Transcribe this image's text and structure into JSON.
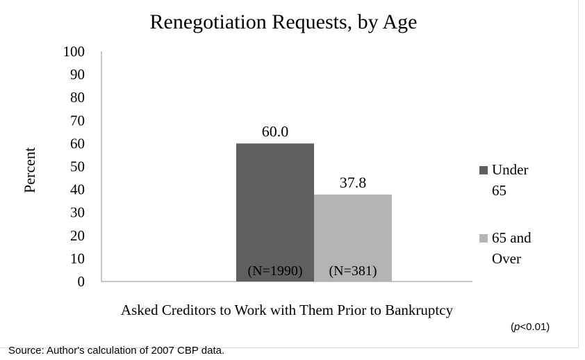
{
  "chart_data": {
    "type": "bar",
    "title": "Renegotiation Requests, by Age",
    "ylabel": "Percent",
    "xlabel": "Asked Creditors to Work with Them Prior to Bankruptcy",
    "ylim": [
      0,
      100
    ],
    "yticks": [
      "0",
      "10",
      "20",
      "30",
      "40",
      "50",
      "60",
      "70",
      "80",
      "90",
      "100"
    ],
    "grid": false,
    "legend_position": "right",
    "categories": [
      "Asked Creditors to Work with Them Prior to Bankruptcy"
    ],
    "series": [
      {
        "name": "Under 65",
        "legend_lines": [
          "Under",
          "65"
        ],
        "values": [
          60.0
        ],
        "value_label": "60.0",
        "n_label": "(N=1990)",
        "color": "#5f5f5f"
      },
      {
        "name": "65 and Over",
        "legend_lines": [
          "65 and",
          "Over"
        ],
        "values": [
          37.8
        ],
        "value_label": "37.8",
        "n_label": "(N=381)",
        "color": "#b3b3b3"
      }
    ]
  },
  "notes": {
    "p_prefix": "(",
    "p_symbol": "p",
    "p_suffix": "<0.01)",
    "source": "Source:  Author's calculation of 2007 CBP data."
  }
}
